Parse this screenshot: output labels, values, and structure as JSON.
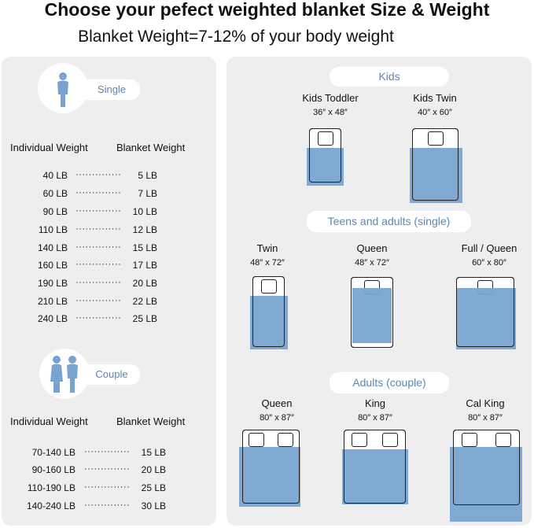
{
  "title": "Choose your pefect weighted blanket Size & Weight",
  "subtitle": "Blanket Weight=7-12% of your body weight",
  "colors": {
    "accent": "#79a4d2",
    "label": "#5c86b5",
    "panel": "#eeeeee"
  },
  "single": {
    "label": "Single",
    "icon": "person-icon",
    "headers": [
      "Individual Weight",
      "Blanket Weight"
    ],
    "rows": [
      [
        "40 LB",
        "5 LB"
      ],
      [
        "60 LB",
        "7 LB"
      ],
      [
        "90 LB",
        "10 LB"
      ],
      [
        "110 LB",
        "12 LB"
      ],
      [
        "140 LB",
        "15 LB"
      ],
      [
        "160 LB",
        "17 LB"
      ],
      [
        "190 LB",
        "20 LB"
      ],
      [
        "210 LB",
        "22 LB"
      ],
      [
        "240 LB",
        "25 LB"
      ]
    ]
  },
  "couple": {
    "label": "Couple",
    "icon": "couple-icon",
    "headers": [
      "Individual Weight",
      "Blanket Weight"
    ],
    "rows": [
      [
        "70-140 LB",
        "15 LB"
      ],
      [
        "90-160 LB",
        "20 LB"
      ],
      [
        "110-190 LB",
        "25 LB"
      ],
      [
        "140-240 LB",
        "30 LB"
      ]
    ]
  },
  "dots": "··············",
  "groups": [
    {
      "label": "Kids",
      "beds": [
        {
          "name": "Kids Toddler",
          "size": "36″ x 48″"
        },
        {
          "name": "Kids Twin",
          "size": "40″ x 60″"
        }
      ]
    },
    {
      "label": "Teens and adults (single)",
      "beds": [
        {
          "name": "Twin",
          "size": "48″ x 72″"
        },
        {
          "name": "Queen",
          "size": "48″ x 72″"
        },
        {
          "name": "Full / Queen",
          "size": "60″ x 80″"
        }
      ]
    },
    {
      "label": "Adults (couple)",
      "beds": [
        {
          "name": "Queen",
          "size": "80″ x 87″"
        },
        {
          "name": "King",
          "size": "80″ x 87″"
        },
        {
          "name": "Cal King",
          "size": "80″ x 87″"
        }
      ]
    }
  ]
}
